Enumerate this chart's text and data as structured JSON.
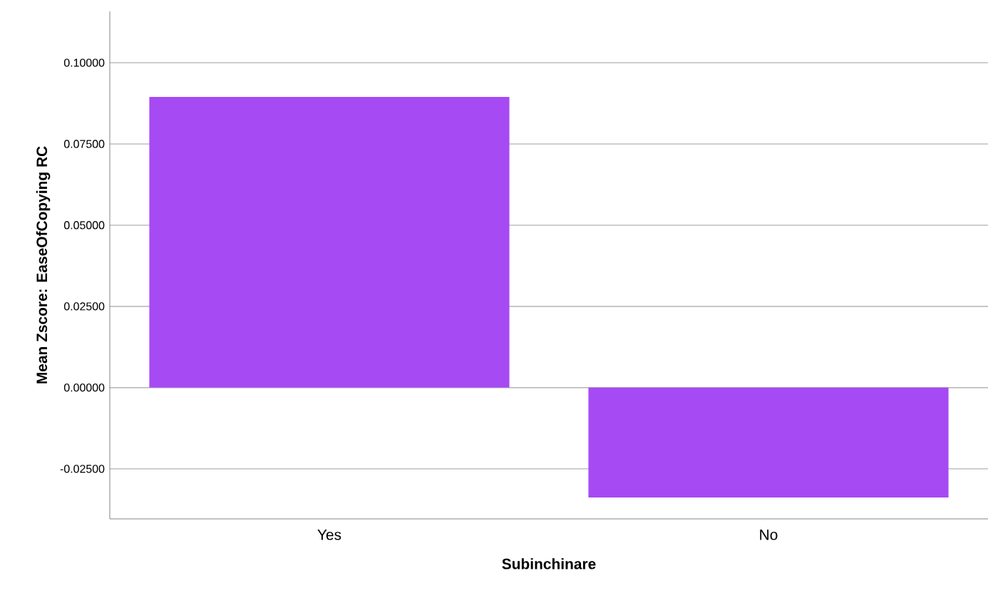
{
  "chart_data": {
    "type": "bar",
    "xlabel": "Subinchinare",
    "ylabel": "Mean Zscore:  EaseOfCopying RC",
    "categories": [
      "Yes",
      "No"
    ],
    "values": [
      0.0895,
      -0.0338
    ],
    "color": "#a64af4",
    "ylim": [
      -0.0404,
      0.1158
    ],
    "yticks": [
      {
        "value": -0.025,
        "label": "-0.02500"
      },
      {
        "value": 0,
        "label": "0.00000"
      },
      {
        "value": 0.025,
        "label": "0.02500"
      },
      {
        "value": 0.05,
        "label": "0.05000"
      },
      {
        "value": 0.075,
        "label": "0.07500"
      },
      {
        "value": 0.1,
        "label": "0.10000"
      }
    ],
    "grid": "y"
  }
}
